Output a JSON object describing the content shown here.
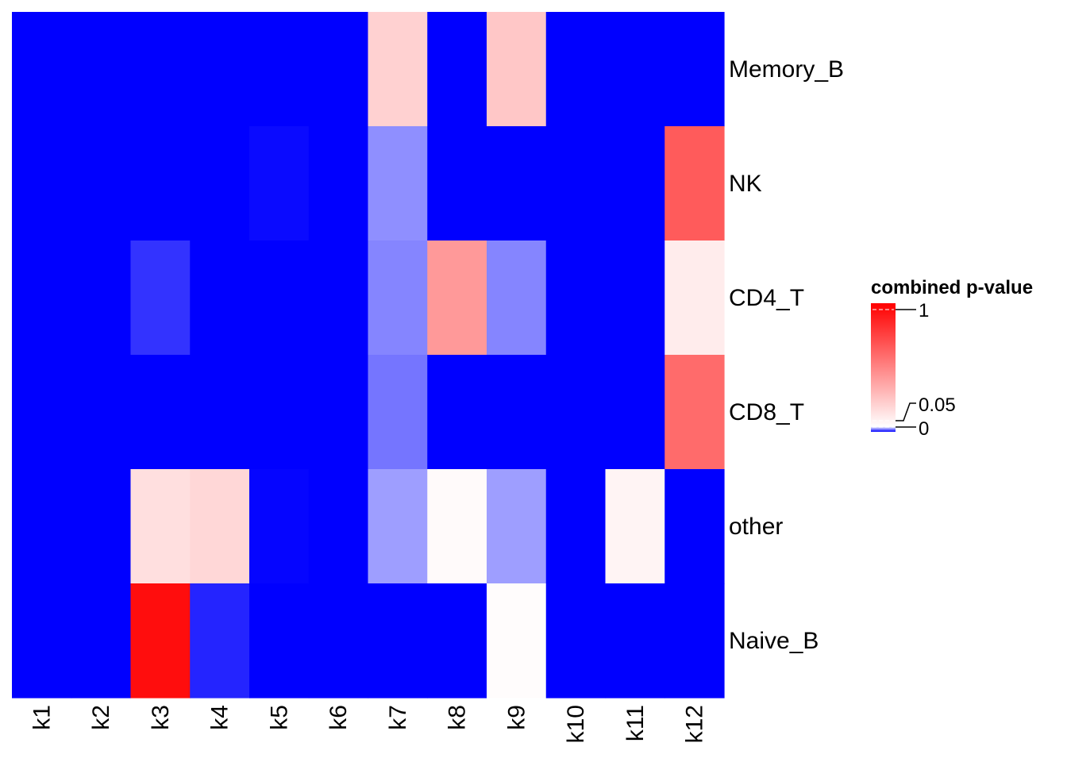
{
  "chart_data": {
    "type": "heatmap",
    "rows": [
      "Memory_B",
      "NK",
      "CD4_T",
      "CD8_T",
      "other",
      "Naive_B"
    ],
    "columns": [
      "k1",
      "k2",
      "k3",
      "k4",
      "k5",
      "k6",
      "k7",
      "k8",
      "k9",
      "k10",
      "k11",
      "k12"
    ],
    "values": [
      [
        0,
        0,
        0,
        0,
        0,
        0,
        0.22,
        0,
        0.26,
        0,
        0,
        0
      ],
      [
        0,
        0,
        0,
        0,
        0.002,
        0,
        0.028,
        0,
        0,
        0,
        0,
        0.66
      ],
      [
        0,
        0,
        0.01,
        0,
        0,
        0,
        0.026,
        0.43,
        0.026,
        0,
        0,
        0.12
      ],
      [
        0,
        0,
        0,
        0,
        0,
        0,
        0.023,
        0,
        0,
        0,
        0,
        0.6
      ],
      [
        0,
        0,
        0.17,
        0.2,
        0.001,
        0,
        0.031,
        0.07,
        0.031,
        0,
        0.09,
        0
      ],
      [
        0,
        0,
        0.95,
        0.007,
        0,
        0,
        0,
        0,
        0.06,
        0,
        0,
        0
      ]
    ],
    "legend": {
      "title": "combined p-value",
      "ticks": [
        "1",
        "0.05",
        "0"
      ],
      "position": "right"
    },
    "colors": {
      "low": "#0000FF",
      "mid": "#FFFFFF",
      "high": "#FF0000"
    }
  }
}
